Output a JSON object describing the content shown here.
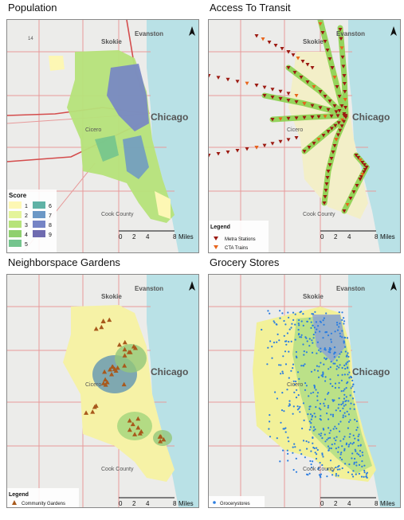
{
  "maps": [
    {
      "title": "Population",
      "place_labels": {
        "skokie": "Skokie",
        "evanston": "Evanston",
        "chicago": "Chicago",
        "cicero": "Cicero",
        "cook_county": "Cook County"
      },
      "scale": {
        "ticks": [
          "0",
          "2",
          "4"
        ],
        "end": "8",
        "unit": "Miles"
      },
      "legend": {
        "title": "Score",
        "entries": [
          {
            "label": "1",
            "color": "#fdf7b4"
          },
          {
            "label": "2",
            "color": "#e4f49b"
          },
          {
            "label": "3",
            "color": "#b6e37a"
          },
          {
            "label": "4",
            "color": "#8fd06e"
          },
          {
            "label": "5",
            "color": "#74c48d"
          },
          {
            "label": "6",
            "color": "#5fb2a6"
          },
          {
            "label": "7",
            "color": "#6c98c6"
          },
          {
            "label": "8",
            "color": "#7584c5"
          },
          {
            "label": "9",
            "color": "#6f6bb0"
          }
        ]
      }
    },
    {
      "title": "Access To Transit",
      "place_labels": {
        "skokie": "Skokie",
        "evanston": "Evanston",
        "chicago": "Chicago",
        "cicero": "Cicero",
        "cook_county": "Cook County"
      },
      "scale": {
        "ticks": [
          "0",
          "2",
          "4"
        ],
        "end": "8",
        "unit": "Miles"
      },
      "legend": {
        "title": "Legend",
        "entries": [
          {
            "label": "Metra Stations",
            "color": "#9c1a12"
          },
          {
            "label": "CTA Trains",
            "color": "#e8641b"
          }
        ]
      }
    },
    {
      "title": "Neighborspace Gardens",
      "place_labels": {
        "skokie": "Skokie",
        "evanston": "Evanston",
        "chicago": "Chicago",
        "cicero": "Cicero",
        "cook_county": "Cook County"
      },
      "scale": {
        "ticks": [
          "0",
          "2",
          "4"
        ],
        "end": "8",
        "unit": "Miles"
      },
      "legend": {
        "title": "Legend",
        "entries": [
          {
            "label": "Community Gardens",
            "color": "#a8591c"
          }
        ]
      }
    },
    {
      "title": "Grocery Stores",
      "place_labels": {
        "skokie": "Skokie",
        "evanston": "Evanston",
        "chicago": "Chicago",
        "cicero": "Cicero",
        "cook_county": "Cook County"
      },
      "scale": {
        "ticks": [
          "0",
          "2",
          "4"
        ],
        "end": "8",
        "unit": "Miles"
      },
      "legend": {
        "title": "",
        "entries": [
          {
            "label": "Grocerystores",
            "color": "#2b7de0"
          }
        ]
      }
    }
  ],
  "colors": {
    "lake": "#b9e1e6",
    "land": "#ececea",
    "roads": "#e08b8b",
    "highway": "#d44c4c"
  }
}
